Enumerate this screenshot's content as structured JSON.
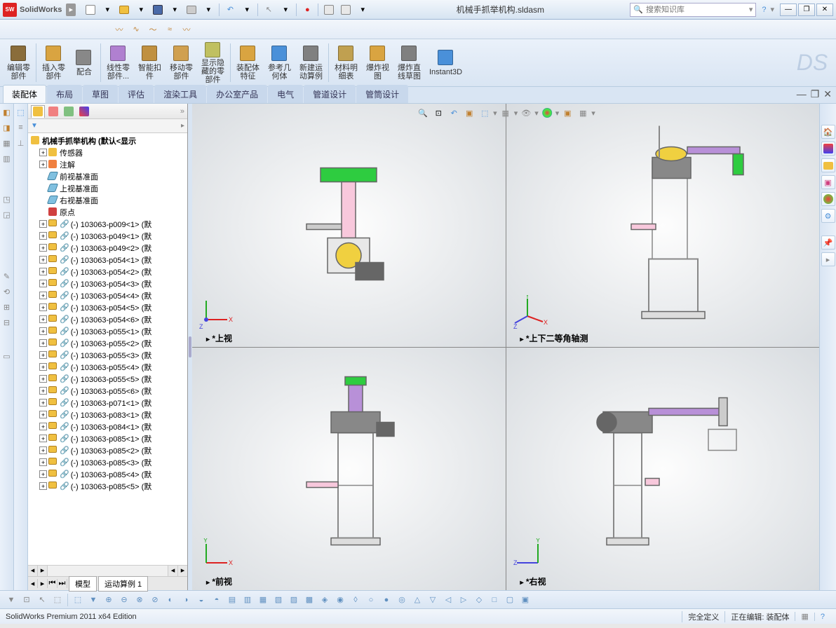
{
  "app": {
    "name": "SolidWorks",
    "logo_text": "SW"
  },
  "document_title": "机械手抓举机构.sldasm",
  "search_placeholder": "搜索知识库",
  "qat_icons": [
    "new",
    "open",
    "save",
    "print",
    "undo",
    "redo",
    "select",
    "options",
    "rebuild",
    "settings"
  ],
  "ribbon": [
    {
      "label": "编辑零\n部件",
      "icon": "#8a6d3b"
    },
    {
      "label": "插入零\n部件",
      "icon": "#d9a441"
    },
    {
      "label": "配合",
      "icon": "#888"
    },
    {
      "label": "线性零\n部件...",
      "icon": "#b080d0"
    },
    {
      "label": "智能扣\n件",
      "icon": "#c09040"
    },
    {
      "label": "移动零\n部件",
      "icon": "#d0a050"
    },
    {
      "label": "显示隐\n藏的零\n部件",
      "icon": "#c0c060"
    },
    {
      "label": "装配体\n特征",
      "icon": "#d9a441"
    },
    {
      "label": "参考几\n何体",
      "icon": "#4a90d9"
    },
    {
      "label": "新建运\n动算例",
      "icon": "#808080"
    },
    {
      "label": "材料明\n细表",
      "icon": "#c0a050"
    },
    {
      "label": "爆炸视\n图",
      "icon": "#d9a441"
    },
    {
      "label": "爆炸直\n线草图",
      "icon": "#808080"
    },
    {
      "label": "Instant3D",
      "icon": "#4a90d9"
    }
  ],
  "tabs": [
    "装配体",
    "布局",
    "草图",
    "评估",
    "渲染工具",
    "办公室产品",
    "电气",
    "管道设计",
    "管筒设计"
  ],
  "active_tab": 0,
  "tree": {
    "root": "机械手抓举机构 (默认<显示",
    "top_nodes": [
      {
        "icon": "folder",
        "label": "传感器",
        "exp": "+"
      },
      {
        "icon": "annot",
        "label": "注解",
        "exp": "+"
      },
      {
        "icon": "plane",
        "label": "前视基准面"
      },
      {
        "icon": "plane",
        "label": "上视基准面"
      },
      {
        "icon": "plane",
        "label": "右视基准面"
      },
      {
        "icon": "origin",
        "label": "原点"
      }
    ],
    "parts": [
      "(-) 103063-p009<1> (默",
      "(-) 103063-p049<1> (默",
      "(-) 103063-p049<2> (默",
      "(-) 103063-p054<1> (默",
      "(-) 103063-p054<2> (默",
      "(-) 103063-p054<3> (默",
      "(-) 103063-p054<4> (默",
      "(-) 103063-p054<5> (默",
      "(-) 103063-p054<6> (默",
      "(-) 103063-p055<1> (默",
      "(-) 103063-p055<2> (默",
      "(-) 103063-p055<3> (默",
      "(-) 103063-p055<4> (默",
      "(-) 103063-p055<5> (默",
      "(-) 103063-p055<6> (默",
      "(-) 103063-p071<1> (默",
      "(-) 103063-p083<1> (默",
      "(-) 103063-p084<1> (默",
      "(-) 103063-p085<1> (默",
      "(-) 103063-p085<2> (默",
      "(-) 103063-p085<3> (默",
      "(-) 103063-p085<4> (默",
      "(-) 103063-p085<5> (默"
    ]
  },
  "bottom_tabs": [
    "模型",
    "运动算例 1"
  ],
  "viewports": [
    {
      "label": "*上视",
      "triad": "xyz"
    },
    {
      "label": "*上下二等角轴测",
      "triad": "iso"
    },
    {
      "label": "*前视",
      "triad": "xy"
    },
    {
      "label": "*右视",
      "triad": "zy"
    }
  ],
  "statusbar": {
    "edition": "SolidWorks Premium 2011 x64 Edition",
    "right1": "完全定义",
    "right2": "正在编辑: 装配体"
  },
  "colors": {
    "green": "#2ecc40",
    "pink": "#f8c8dc",
    "purple": "#b890d8",
    "gray": "#888",
    "yellow": "#f0d040"
  }
}
